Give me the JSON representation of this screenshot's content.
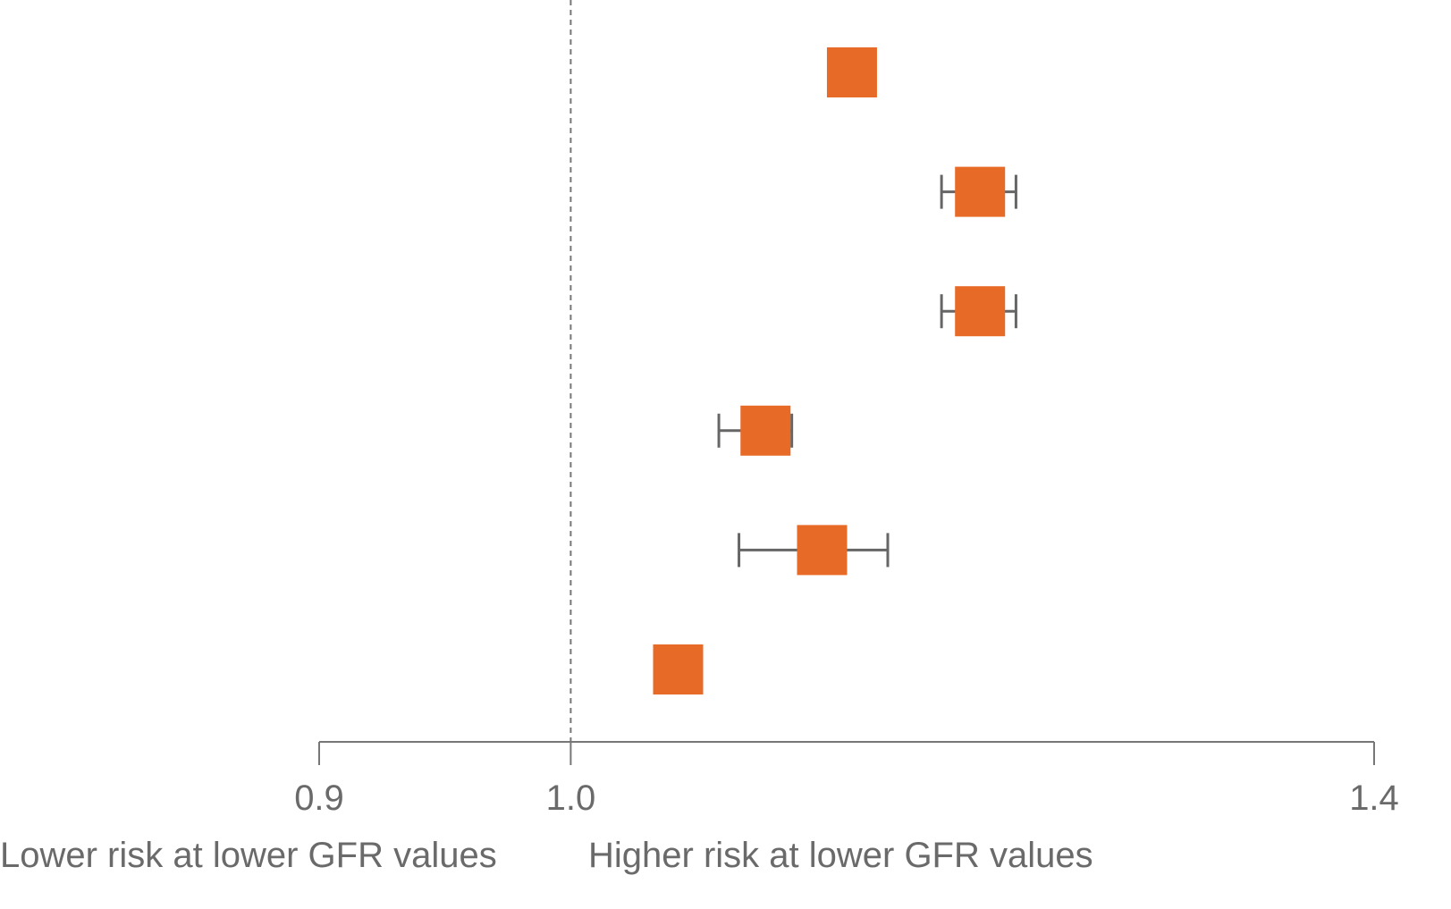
{
  "chart_data": {
    "type": "forest",
    "title": "",
    "xlabel": "",
    "ylabel": "",
    "x_scale": "log",
    "xlim": [
      0.9,
      1.4
    ],
    "reference_line": 1.0,
    "x_ticks": [
      {
        "value": 0.9,
        "label": "0.9"
      },
      {
        "value": 1.0,
        "label": "1.0"
      },
      {
        "value": 1.4,
        "label": "1.4"
      }
    ],
    "direction_labels": {
      "left": "Lower risk at lower GFR values",
      "right": "Higher risk at lower GFR values"
    },
    "points": [
      {
        "estimate": 1.125,
        "lower": 1.125,
        "upper": 1.135
      },
      {
        "estimate": 1.187,
        "lower": 1.168,
        "upper": 1.205
      },
      {
        "estimate": 1.187,
        "lower": 1.168,
        "upper": 1.205
      },
      {
        "estimate": 1.085,
        "lower": 1.064,
        "upper": 1.097
      },
      {
        "estimate": 1.111,
        "lower": 1.073,
        "upper": 1.142
      },
      {
        "estimate": 1.046,
        "lower": 1.046,
        "upper": 1.055
      }
    ],
    "colors": {
      "marker": "#E86A27",
      "whisker": "#666666",
      "axis": "#777777",
      "reference_line": "#777777"
    },
    "grid": false
  }
}
